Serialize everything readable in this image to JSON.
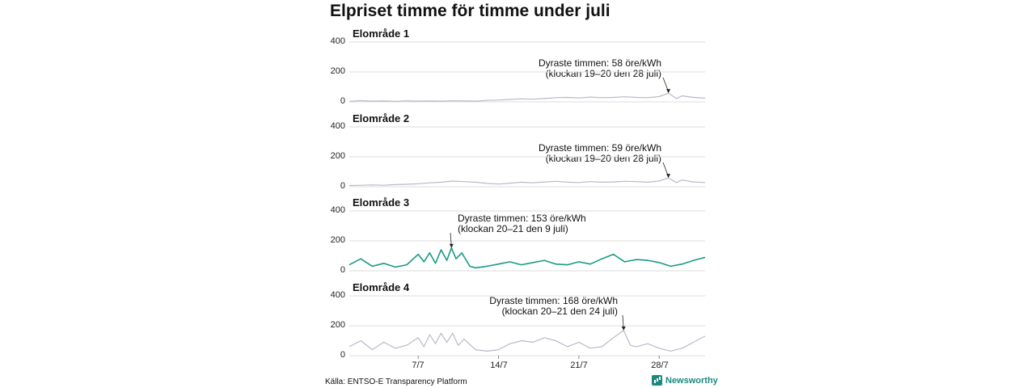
{
  "title": "Elpriset timme för timme under juli",
  "source": "Källa: ENTSO-E Transparency Platform",
  "brand": "Newsworthy",
  "colors": {
    "grey_line": "#b9b8cc",
    "accent_line": "#1a9a85",
    "grid": "#dddddd"
  },
  "chart_data": [
    {
      "type": "line",
      "title": "Elområde 1",
      "ylim": [
        0,
        400
      ],
      "yticks": [
        "400",
        "200",
        "0"
      ],
      "xlim": [
        1,
        32
      ],
      "xticks": [
        {
          "x": 7,
          "label": "7/7"
        },
        {
          "x": 14,
          "label": "14/7"
        },
        {
          "x": 21,
          "label": "21/7"
        },
        {
          "x": 28,
          "label": "28/7"
        }
      ],
      "highlight": false,
      "annotation_lines": [
        "Dyraste timmen: 58 öre/kWh",
        "(klockan 19–20 den 28 juli)"
      ],
      "peak": {
        "x": 28.8,
        "y": 58
      },
      "series": [
        {
          "x": [
            1,
            2,
            3,
            4,
            5,
            6,
            7,
            8,
            9,
            10,
            11,
            12,
            13,
            14,
            15,
            16,
            17,
            18,
            19,
            20,
            21,
            22,
            23,
            24,
            25,
            26,
            27,
            28,
            28.8,
            29.5,
            30,
            31,
            32
          ],
          "values": [
            4,
            8,
            5,
            6,
            4,
            7,
            5,
            6,
            5,
            7,
            6,
            5,
            10,
            12,
            16,
            20,
            18,
            22,
            28,
            30,
            26,
            32,
            28,
            30,
            34,
            30,
            28,
            35,
            58,
            22,
            40,
            30,
            25
          ]
        }
      ]
    },
    {
      "type": "line",
      "title": "Elområde 2",
      "ylim": [
        0,
        400
      ],
      "yticks": [
        "400",
        "200",
        "0"
      ],
      "xlim": [
        1,
        32
      ],
      "xticks": [
        {
          "x": 7,
          "label": "7/7"
        },
        {
          "x": 14,
          "label": "14/7"
        },
        {
          "x": 21,
          "label": "21/7"
        },
        {
          "x": 28,
          "label": "28/7"
        }
      ],
      "highlight": false,
      "annotation_lines": [
        "Dyraste timmen: 59 öre/kWh",
        "(klockan 19–20 den 28 juli)"
      ],
      "peak": {
        "x": 28.8,
        "y": 59
      },
      "series": [
        {
          "x": [
            1,
            2,
            3,
            4,
            5,
            6,
            7,
            8,
            9,
            10,
            11,
            12,
            13,
            14,
            15,
            16,
            17,
            18,
            19,
            20,
            21,
            22,
            23,
            24,
            25,
            26,
            27,
            28,
            28.8,
            29.5,
            30,
            31,
            32
          ],
          "values": [
            8,
            10,
            12,
            10,
            14,
            16,
            20,
            26,
            30,
            38,
            34,
            30,
            22,
            18,
            24,
            30,
            26,
            32,
            36,
            30,
            28,
            34,
            30,
            32,
            36,
            34,
            30,
            38,
            59,
            28,
            45,
            32,
            28
          ]
        }
      ]
    },
    {
      "type": "line",
      "title": "Elområde 3",
      "ylim": [
        0,
        400
      ],
      "yticks": [
        "400",
        "200",
        "0"
      ],
      "xlim": [
        1,
        32
      ],
      "xticks": [
        {
          "x": 7,
          "label": "7/7"
        },
        {
          "x": 14,
          "label": "14/7"
        },
        {
          "x": 21,
          "label": "21/7"
        },
        {
          "x": 28,
          "label": "28/7"
        }
      ],
      "highlight": true,
      "annotation_lines": [
        "Dyraste timmen: 153 öre/kWh",
        "(klockan 20–21 den 9 juli)"
      ],
      "peak": {
        "x": 9.9,
        "y": 153
      },
      "series": [
        {
          "x": [
            1,
            2,
            3,
            4,
            5,
            6,
            7,
            7.5,
            8,
            8.5,
            9,
            9.5,
            9.9,
            10.3,
            10.8,
            11.5,
            12,
            13,
            14,
            15,
            16,
            17,
            18,
            19,
            20,
            21,
            22,
            23,
            24,
            25,
            26,
            27,
            28,
            29,
            30,
            31,
            32
          ],
          "values": [
            40,
            80,
            30,
            50,
            25,
            40,
            110,
            60,
            120,
            50,
            140,
            70,
            153,
            80,
            120,
            30,
            20,
            30,
            45,
            60,
            40,
            55,
            70,
            45,
            40,
            60,
            45,
            80,
            110,
            60,
            75,
            70,
            55,
            30,
            45,
            70,
            90
          ]
        }
      ]
    },
    {
      "type": "line",
      "title": "Elområde 4",
      "ylim": [
        0,
        400
      ],
      "yticks": [
        "400",
        "200",
        "0"
      ],
      "xlim": [
        1,
        32
      ],
      "xticks": [
        {
          "x": 7,
          "label": "7/7"
        },
        {
          "x": 14,
          "label": "14/7"
        },
        {
          "x": 21,
          "label": "21/7"
        },
        {
          "x": 28,
          "label": "28/7"
        }
      ],
      "highlight": false,
      "annotation_lines": [
        "Dyraste timmen: 168 öre/kWh",
        "(klockan 20–21 den 24 juli)"
      ],
      "peak": {
        "x": 24.9,
        "y": 168
      },
      "series": [
        {
          "x": [
            1,
            2,
            3,
            4,
            5,
            6,
            7,
            7.5,
            8,
            8.5,
            9,
            9.5,
            10,
            10.5,
            11,
            12,
            13,
            14,
            15,
            16,
            17,
            18,
            19,
            20,
            21,
            22,
            23,
            24,
            24.9,
            25.5,
            26,
            27,
            28,
            29,
            30,
            31,
            32
          ],
          "values": [
            60,
            100,
            40,
            90,
            50,
            70,
            120,
            60,
            140,
            80,
            150,
            90,
            150,
            70,
            110,
            40,
            30,
            40,
            80,
            100,
            90,
            120,
            100,
            60,
            90,
            50,
            60,
            120,
            168,
            70,
            60,
            80,
            50,
            30,
            50,
            90,
            130
          ]
        }
      ]
    }
  ]
}
